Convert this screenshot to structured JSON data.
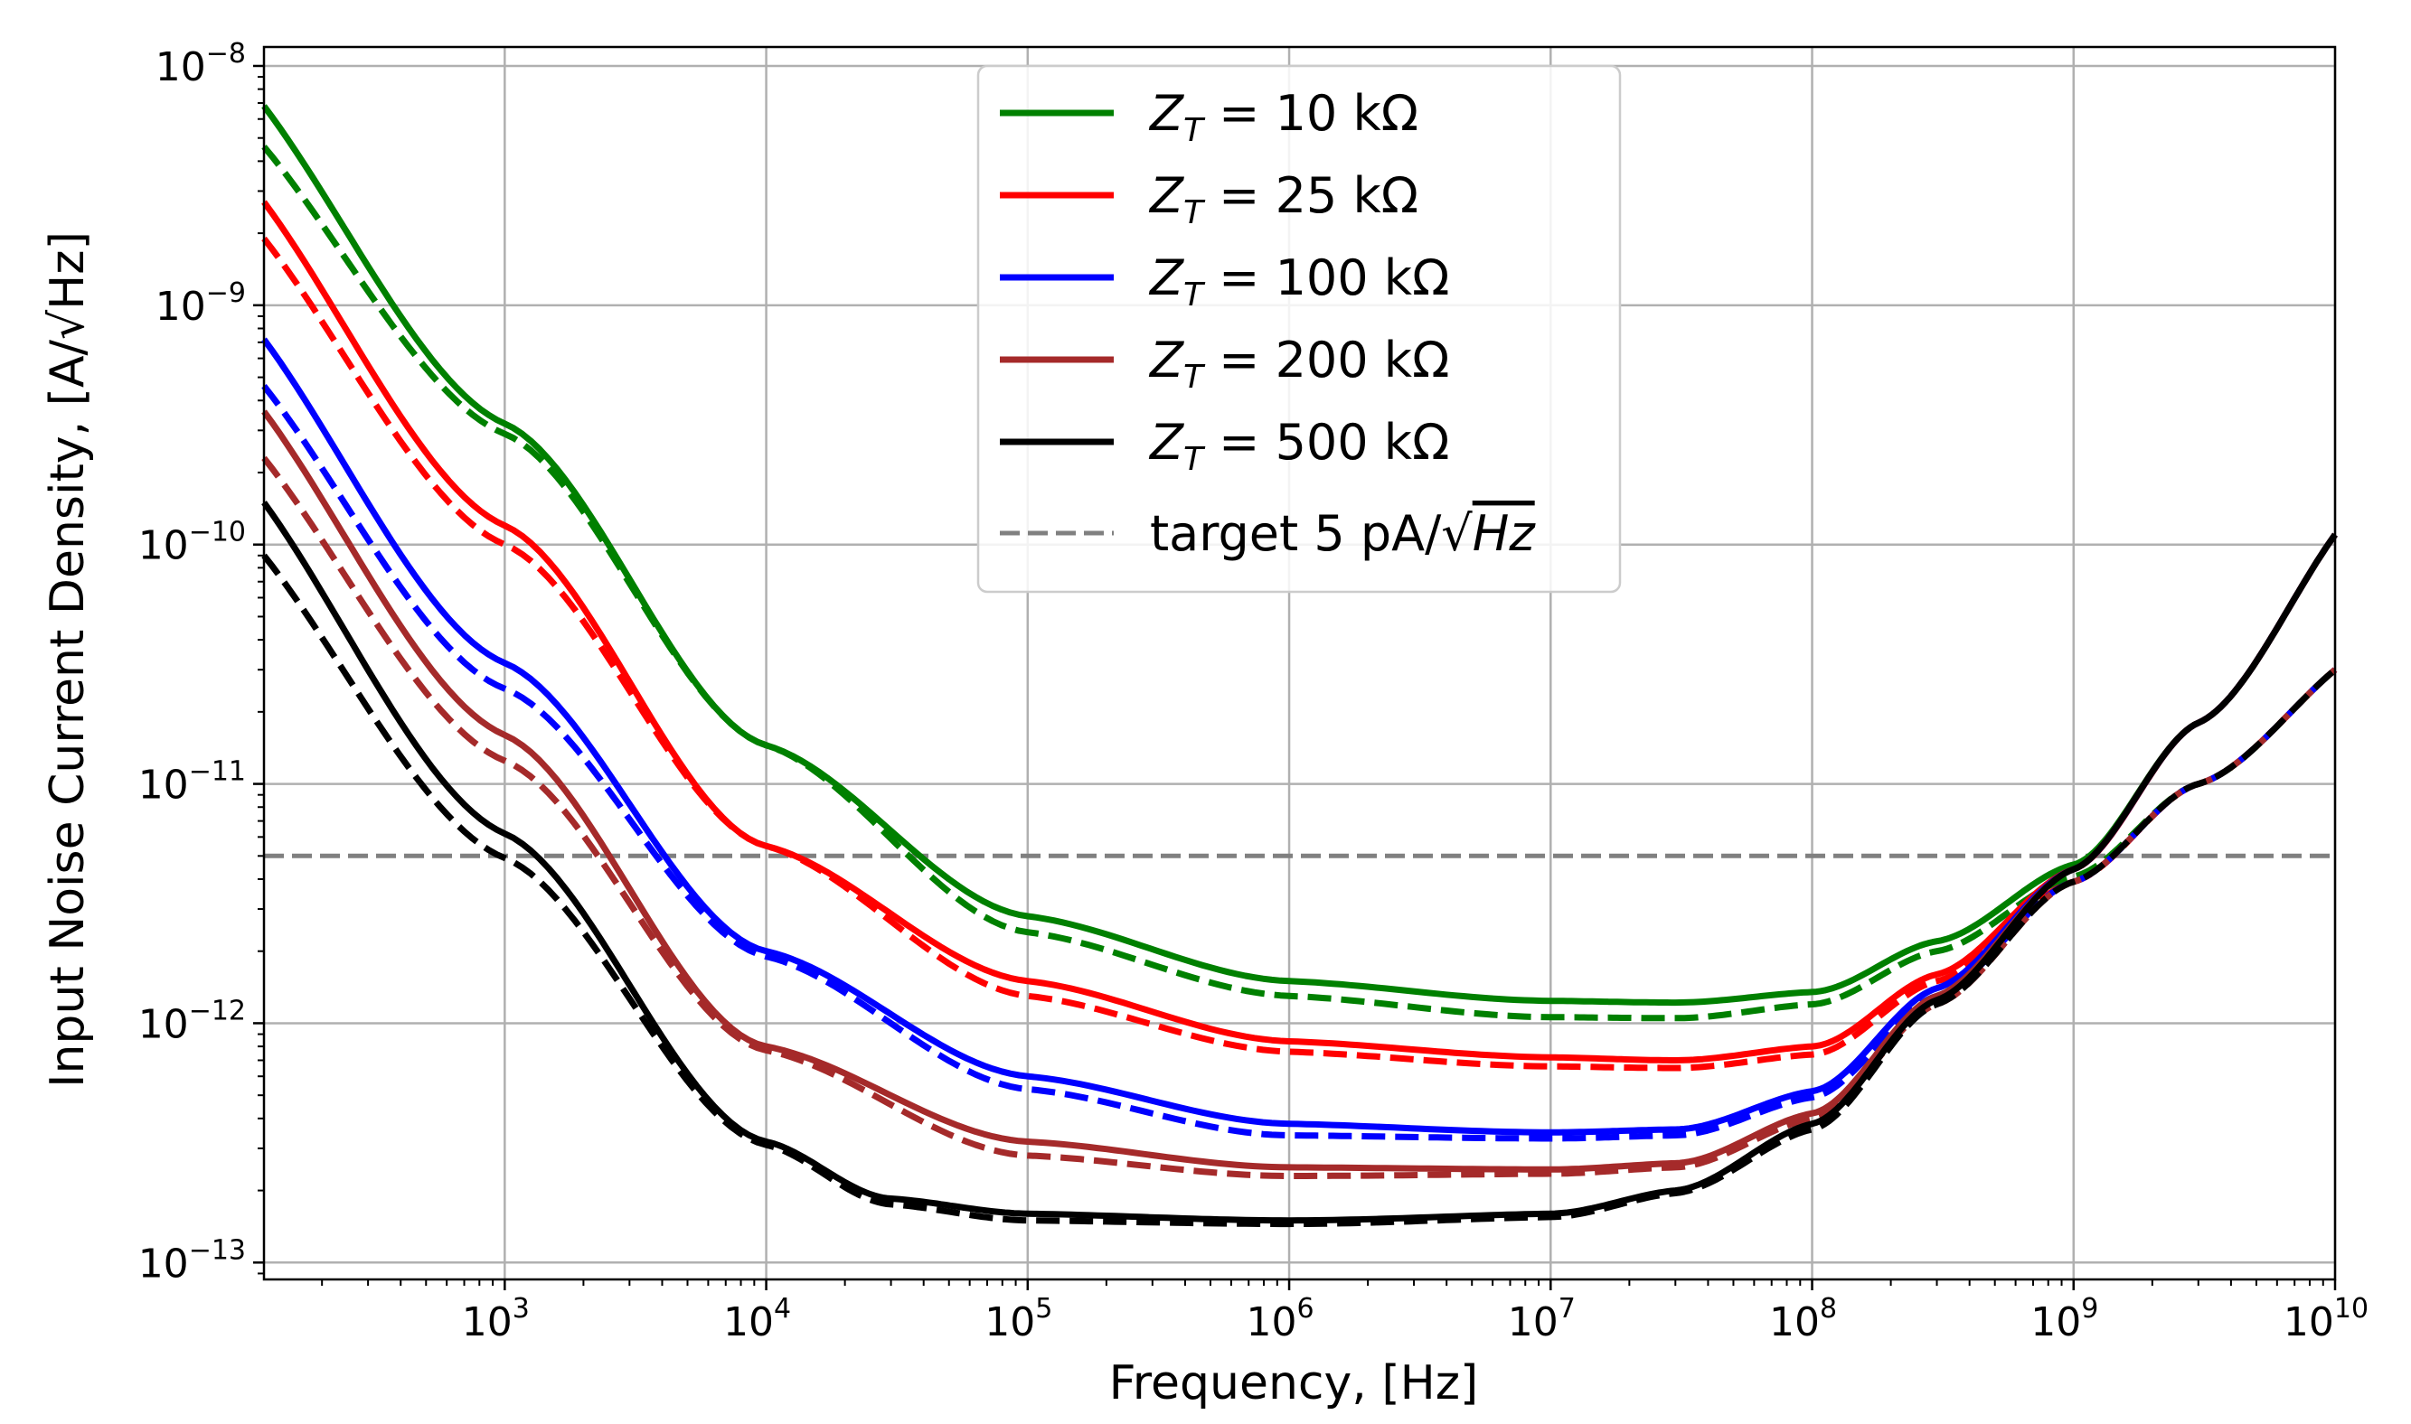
{
  "chart_data": {
    "type": "line",
    "title": "",
    "xlabel": "Frequency, [Hz]",
    "ylabel": "Input Noise Current Density, [A/√Hz]",
    "xscale": "log",
    "yscale": "log",
    "xlim": [
      120,
      10000000000
    ],
    "ylim": [
      8.5e-14,
      1.2e-08
    ],
    "grid": true,
    "legend_position": "top-center",
    "x_ticks": [
      {
        "exp": 3,
        "label": "3"
      },
      {
        "exp": 4,
        "label": "4"
      },
      {
        "exp": 5,
        "label": "5"
      },
      {
        "exp": 6,
        "label": "6"
      },
      {
        "exp": 7,
        "label": "7"
      },
      {
        "exp": 8,
        "label": "8"
      },
      {
        "exp": 9,
        "label": "9"
      },
      {
        "exp": 10,
        "label": "10"
      }
    ],
    "y_ticks": [
      {
        "exp": -8,
        "label": "−8"
      },
      {
        "exp": -9,
        "label": "−9"
      },
      {
        "exp": -10,
        "label": "−10"
      },
      {
        "exp": -11,
        "label": "−11"
      },
      {
        "exp": -12,
        "label": "−12"
      },
      {
        "exp": -13,
        "label": "−13"
      }
    ],
    "tick_base": "10",
    "target": {
      "value": 5e-12,
      "label_prefix": "target 5 pA/",
      "label_unit": "Hz",
      "color": "#808080"
    },
    "legend_prefix": "Z",
    "legend_subscript": "T",
    "series": [
      {
        "name": "10 kΩ",
        "color": "#008000",
        "floor": 1.22e-12,
        "solid": [
          [
            120,
            6.8e-09
          ],
          [
            1000,
            3.2e-10
          ],
          [
            10000,
            1.45e-11
          ],
          [
            100000,
            2.8e-12
          ],
          [
            1000000,
            1.5e-12
          ],
          [
            10000000,
            1.24e-12
          ],
          [
            30000000,
            1.22e-12
          ],
          [
            100000000,
            1.35e-12
          ],
          [
            300000000,
            2.2e-12
          ],
          [
            1000000000,
            4.6e-12
          ],
          [
            3000000000,
            1.8e-11
          ],
          [
            10000000000,
            1.1e-10
          ]
        ],
        "dashed": [
          [
            120,
            4.6e-09
          ],
          [
            1000,
            2.9e-10
          ],
          [
            10000,
            1.45e-11
          ],
          [
            100000,
            2.4e-12
          ],
          [
            1000000,
            1.3e-12
          ],
          [
            10000000,
            1.06e-12
          ],
          [
            30000000,
            1.05e-12
          ],
          [
            100000000,
            1.2e-12
          ],
          [
            300000000,
            2e-12
          ],
          [
            1000000000,
            4.1e-12
          ],
          [
            3000000000,
            1e-11
          ],
          [
            10000000000,
            3e-11
          ]
        ]
      },
      {
        "name": "25 kΩ",
        "color": "#ff0000",
        "floor": 7e-13,
        "solid": [
          [
            120,
            2.7e-09
          ],
          [
            1000,
            1.2e-10
          ],
          [
            10000,
            5.5e-12
          ],
          [
            100000,
            1.5e-12
          ],
          [
            1000000,
            8.4e-13
          ],
          [
            10000000,
            7.2e-13
          ],
          [
            30000000,
            7e-13
          ],
          [
            100000000,
            8e-13
          ],
          [
            300000000,
            1.6e-12
          ],
          [
            1000000000,
            4.4e-12
          ],
          [
            3000000000,
            1.8e-11
          ],
          [
            10000000000,
            1.1e-10
          ]
        ],
        "dashed": [
          [
            120,
            1.9e-09
          ],
          [
            1000,
            1e-10
          ],
          [
            10000,
            5.5e-12
          ],
          [
            100000,
            1.3e-12
          ],
          [
            1000000,
            7.6e-13
          ],
          [
            10000000,
            6.6e-13
          ],
          [
            30000000,
            6.5e-13
          ],
          [
            100000000,
            7.4e-13
          ],
          [
            300000000,
            1.5e-12
          ],
          [
            1000000000,
            3.9e-12
          ],
          [
            3000000000,
            1e-11
          ],
          [
            10000000000,
            3e-11
          ]
        ]
      },
      {
        "name": "100 kΩ",
        "color": "#0000ff",
        "floor": 3.4e-13,
        "solid": [
          [
            120,
            7.2e-10
          ],
          [
            1000,
            3.2e-11
          ],
          [
            10000,
            2e-12
          ],
          [
            100000,
            6e-13
          ],
          [
            1000000,
            3.8e-13
          ],
          [
            10000000,
            3.5e-13
          ],
          [
            30000000,
            3.6e-13
          ],
          [
            100000000,
            5.2e-13
          ],
          [
            300000000,
            1.4e-12
          ],
          [
            1000000000,
            4.4e-12
          ],
          [
            3000000000,
            1.8e-11
          ],
          [
            10000000000,
            1.1e-10
          ]
        ],
        "dashed": [
          [
            120,
            4.6e-10
          ],
          [
            1000,
            2.5e-11
          ],
          [
            10000,
            1.9e-12
          ],
          [
            100000,
            5.3e-13
          ],
          [
            1000000,
            3.4e-13
          ],
          [
            10000000,
            3.3e-13
          ],
          [
            30000000,
            3.4e-13
          ],
          [
            100000000,
            4.9e-13
          ],
          [
            300000000,
            1.3e-12
          ],
          [
            1000000000,
            3.9e-12
          ],
          [
            3000000000,
            1e-11
          ],
          [
            10000000000,
            3e-11
          ]
        ]
      },
      {
        "name": "200 kΩ",
        "color": "#a52a2a",
        "floor": 2.45e-13,
        "solid": [
          [
            120,
            3.6e-10
          ],
          [
            1000,
            1.6e-11
          ],
          [
            10000,
            8e-13
          ],
          [
            100000,
            3.2e-13
          ],
          [
            1000000,
            2.5e-13
          ],
          [
            10000000,
            2.45e-13
          ],
          [
            30000000,
            2.6e-13
          ],
          [
            100000000,
            4.2e-13
          ],
          [
            300000000,
            1.3e-12
          ],
          [
            1000000000,
            4.4e-12
          ],
          [
            3000000000,
            1.8e-11
          ],
          [
            10000000000,
            1.1e-10
          ]
        ],
        "dashed": [
          [
            120,
            2.3e-10
          ],
          [
            1000,
            1.25e-11
          ],
          [
            10000,
            7.7e-13
          ],
          [
            100000,
            2.8e-13
          ],
          [
            1000000,
            2.3e-13
          ],
          [
            10000000,
            2.35e-13
          ],
          [
            30000000,
            2.5e-13
          ],
          [
            100000000,
            4e-13
          ],
          [
            300000000,
            1.2e-12
          ],
          [
            1000000000,
            3.9e-12
          ],
          [
            3000000000,
            1e-11
          ],
          [
            10000000000,
            3e-11
          ]
        ]
      },
      {
        "name": "500 kΩ",
        "color": "#000000",
        "floor": 1.5e-13,
        "solid": [
          [
            120,
            1.5e-10
          ],
          [
            1000,
            6.2e-12
          ],
          [
            10000,
            3.2e-13
          ],
          [
            30000,
            1.85e-13
          ],
          [
            100000,
            1.6e-13
          ],
          [
            1000000,
            1.5e-13
          ],
          [
            10000000,
            1.6e-13
          ],
          [
            30000000,
            2e-13
          ],
          [
            100000000,
            3.8e-13
          ],
          [
            300000000,
            1.25e-12
          ],
          [
            1000000000,
            4.4e-12
          ],
          [
            3000000000,
            1.8e-11
          ],
          [
            10000000000,
            1.1e-10
          ]
        ],
        "dashed": [
          [
            120,
            9e-11
          ],
          [
            1000,
            4.9e-12
          ],
          [
            10000,
            3.1e-13
          ],
          [
            30000,
            1.75e-13
          ],
          [
            100000,
            1.5e-13
          ],
          [
            1000000,
            1.45e-13
          ],
          [
            10000000,
            1.55e-13
          ],
          [
            30000000,
            1.95e-13
          ],
          [
            100000000,
            3.6e-13
          ],
          [
            300000000,
            1.2e-12
          ],
          [
            1000000000,
            3.9e-12
          ],
          [
            3000000000,
            1e-11
          ],
          [
            10000000000,
            3e-11
          ]
        ]
      }
    ]
  }
}
